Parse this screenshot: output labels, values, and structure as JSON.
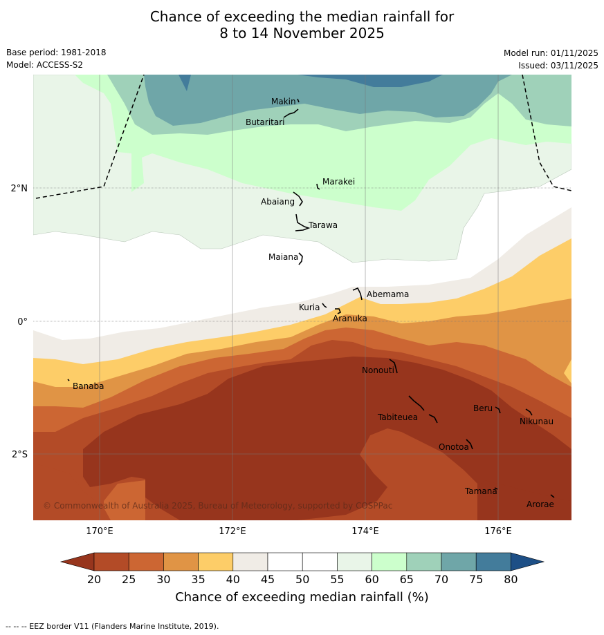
{
  "title_line1": "Chance of exceeding the median rainfall for",
  "title_line2": "8 to 14 November 2025",
  "base_period": "Base period: 1981-2018",
  "model": "Model: ACCESS-S2",
  "model_run": "Model run: 01/11/2025",
  "issued": "Issued: 03/11/2025",
  "copyright": "© Commonwealth of Australia 2025, Bureau of Meteorology, supported by COSPPac",
  "lat_labels": [
    "2°N",
    "0°",
    "2°S"
  ],
  "lon_labels": [
    "170°E",
    "172°E",
    "174°E",
    "176°E"
  ],
  "islands": [
    "Makin",
    "Butaritari",
    "Marakei",
    "Abaiang",
    "Tarawa",
    "Maiana",
    "Abemama",
    "Kuria",
    "Aranuka",
    "Banaba",
    "Nonouti",
    "Tabiteuea",
    "Beru",
    "Nikunau",
    "Onotoa",
    "Tamana",
    "Arorae"
  ],
  "colorbar": {
    "ticks": [
      "20",
      "25",
      "30",
      "35",
      "40",
      "45",
      "50",
      "55",
      "60",
      "65",
      "70",
      "75",
      "80"
    ],
    "colors": [
      "#97351d",
      "#b34b27",
      "#cc6633",
      "#e09445",
      "#fdcd68",
      "#f0ece6",
      "#ffffff",
      "#ffffff",
      "#e9f5e8",
      "#ccffcc",
      "#9fd1b9",
      "#6fa6a8",
      "#437c9b",
      "#1d4f86"
    ],
    "title": "Chance of exceeding median rainfall (%)"
  },
  "footer": "--  --  -- EEZ border V11 (Flanders Marine Institute, 2019)."
}
